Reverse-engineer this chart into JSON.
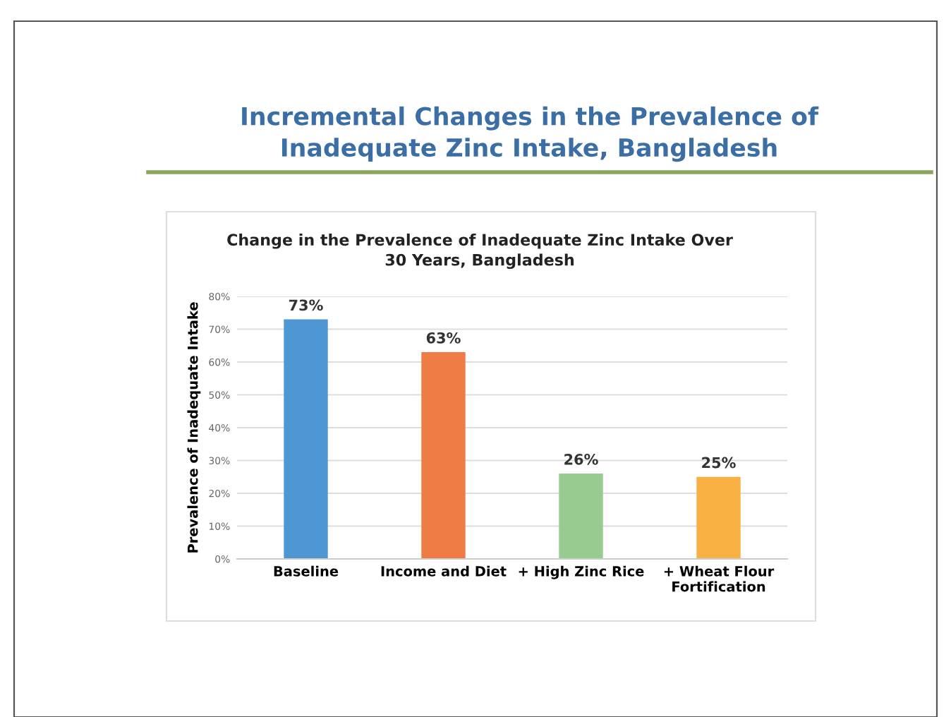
{
  "chart_data": {
    "type": "bar",
    "title": "Incremental Changes in the Prevalence of\nInadequate Zinc Intake, Bangladesh",
    "subtitle": "Change in the Prevalence of Inadequate Zinc Intake Over\n30 Years, Bangladesh",
    "ylabel": "Prevalence of Inadequate Intake",
    "categories": [
      "Baseline",
      "Income and Diet",
      "+ High Zinc Rice",
      "+ Wheat Flour\nFortification"
    ],
    "values": [
      73,
      63,
      26,
      25
    ],
    "colors": [
      "#4f97d3",
      "#ef7c45",
      "#97cb8f",
      "#f8b142"
    ],
    "value_labels": [
      "73%",
      "63%",
      "26%",
      "25%"
    ],
    "ylim": [
      0,
      80
    ],
    "yticks": [
      {
        "value": 0,
        "label": "0%"
      },
      {
        "value": 10,
        "label": "10%"
      },
      {
        "value": 20,
        "label": "20%"
      },
      {
        "value": 30,
        "label": "30%"
      },
      {
        "value": 40,
        "label": "40%"
      },
      {
        "value": 50,
        "label": "50%"
      },
      {
        "value": 60,
        "label": "60%"
      },
      {
        "value": 70,
        "label": "70%"
      },
      {
        "value": 80,
        "label": "80%"
      }
    ],
    "grid": "y"
  }
}
